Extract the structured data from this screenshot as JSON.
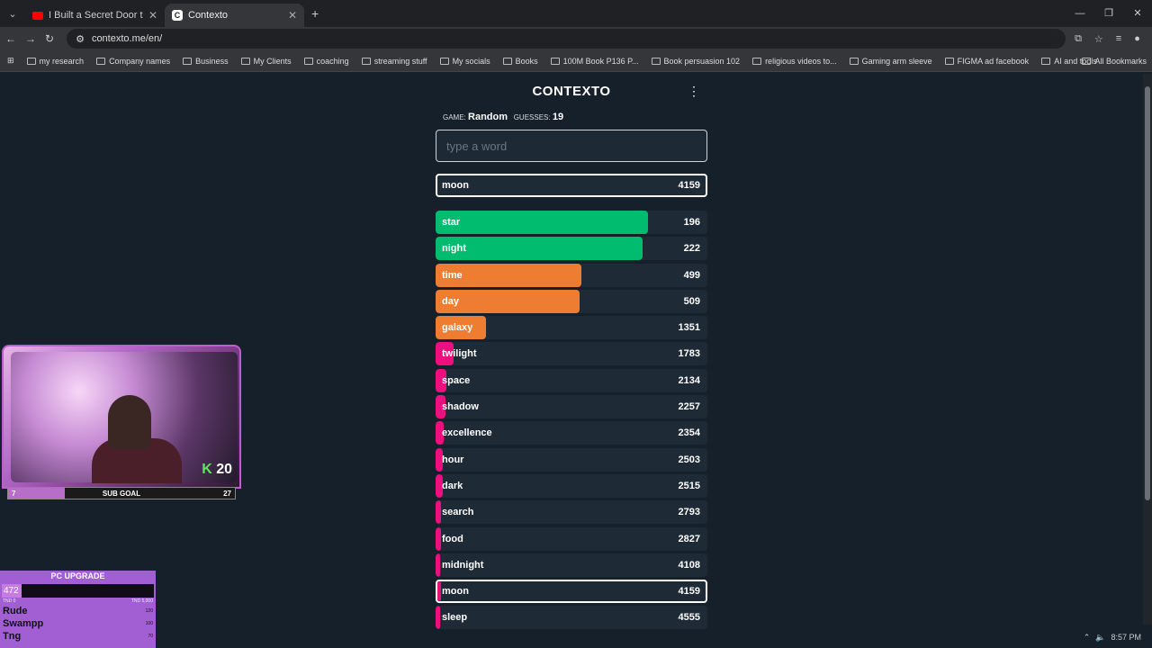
{
  "browser": {
    "tabs": [
      {
        "title": "I Built a Secret Door to Trick m",
        "active": false
      },
      {
        "title": "Contexto",
        "active": true
      }
    ],
    "url": "contexto.me/en/",
    "bookmarks": [
      "my research",
      "Company names",
      "Business",
      "My Clients",
      "coaching",
      "streaming stuff",
      "My socials",
      "Books",
      "100M Book P136 P...",
      "Book persuasion 102",
      "religious videos to...",
      "Gaming arm sleeve",
      "FIGMA ad facebook",
      "AI and tools"
    ],
    "all_bookmarks": "All Bookmarks",
    "time": "8:57 PM"
  },
  "game": {
    "title": "CONTEXTO",
    "game_label": "GAME:",
    "game_value": "Random",
    "guesses_label": "GUESSES:",
    "guesses_value": "19",
    "input_placeholder": "type a word",
    "last_guess": {
      "word": "moon",
      "distance": 4159
    },
    "guesses": [
      {
        "word": "star",
        "distance": 196,
        "color": "#01bb6e",
        "fill": 0.78
      },
      {
        "word": "night",
        "distance": 222,
        "color": "#01bb6e",
        "fill": 0.76
      },
      {
        "word": "time",
        "distance": 499,
        "color": "#ee7d31",
        "fill": 0.535
      },
      {
        "word": "day",
        "distance": 509,
        "color": "#ee7d31",
        "fill": 0.53
      },
      {
        "word": "galaxy",
        "distance": 1351,
        "color": "#ee7d31",
        "fill": 0.185
      },
      {
        "word": "twilight",
        "distance": 1783,
        "color": "#ec0f7d",
        "fill": 0.065
      },
      {
        "word": "space",
        "distance": 2134,
        "color": "#ec0f7d",
        "fill": 0.04
      },
      {
        "word": "shadow",
        "distance": 2257,
        "color": "#ec0f7d",
        "fill": 0.035
      },
      {
        "word": "excellence",
        "distance": 2354,
        "color": "#ec0f7d",
        "fill": 0.03
      },
      {
        "word": "hour",
        "distance": 2503,
        "color": "#ec0f7d",
        "fill": 0.025
      },
      {
        "word": "dark",
        "distance": 2515,
        "color": "#ec0f7d",
        "fill": 0.025
      },
      {
        "word": "search",
        "distance": 2793,
        "color": "#ec0f7d",
        "fill": 0.02
      },
      {
        "word": "food",
        "distance": 2827,
        "color": "#ec0f7d",
        "fill": 0.02
      },
      {
        "word": "midnight",
        "distance": 4108,
        "color": "#ec0f7d",
        "fill": 0.012
      },
      {
        "word": "moon",
        "distance": 4159,
        "color": "#ec0f7d",
        "fill": 0.012,
        "highlight": true
      },
      {
        "word": "sleep",
        "distance": 4555,
        "color": "#ec0f7d",
        "fill": 0.01
      }
    ]
  },
  "overlay": {
    "badge_letter": "K",
    "badge_number": "20",
    "subgoal_left": "7",
    "subgoal_label": "SUB GOAL",
    "subgoal_right": "27",
    "pc_title": "PC UPGRADE",
    "pc_value": "472",
    "pc_min": "TND 0",
    "pc_max": "TND 5,000",
    "donors": [
      {
        "name": "Rude",
        "amount": "120"
      },
      {
        "name": "Swampp",
        "amount": "100"
      },
      {
        "name": "Tng",
        "amount": "70"
      }
    ]
  }
}
